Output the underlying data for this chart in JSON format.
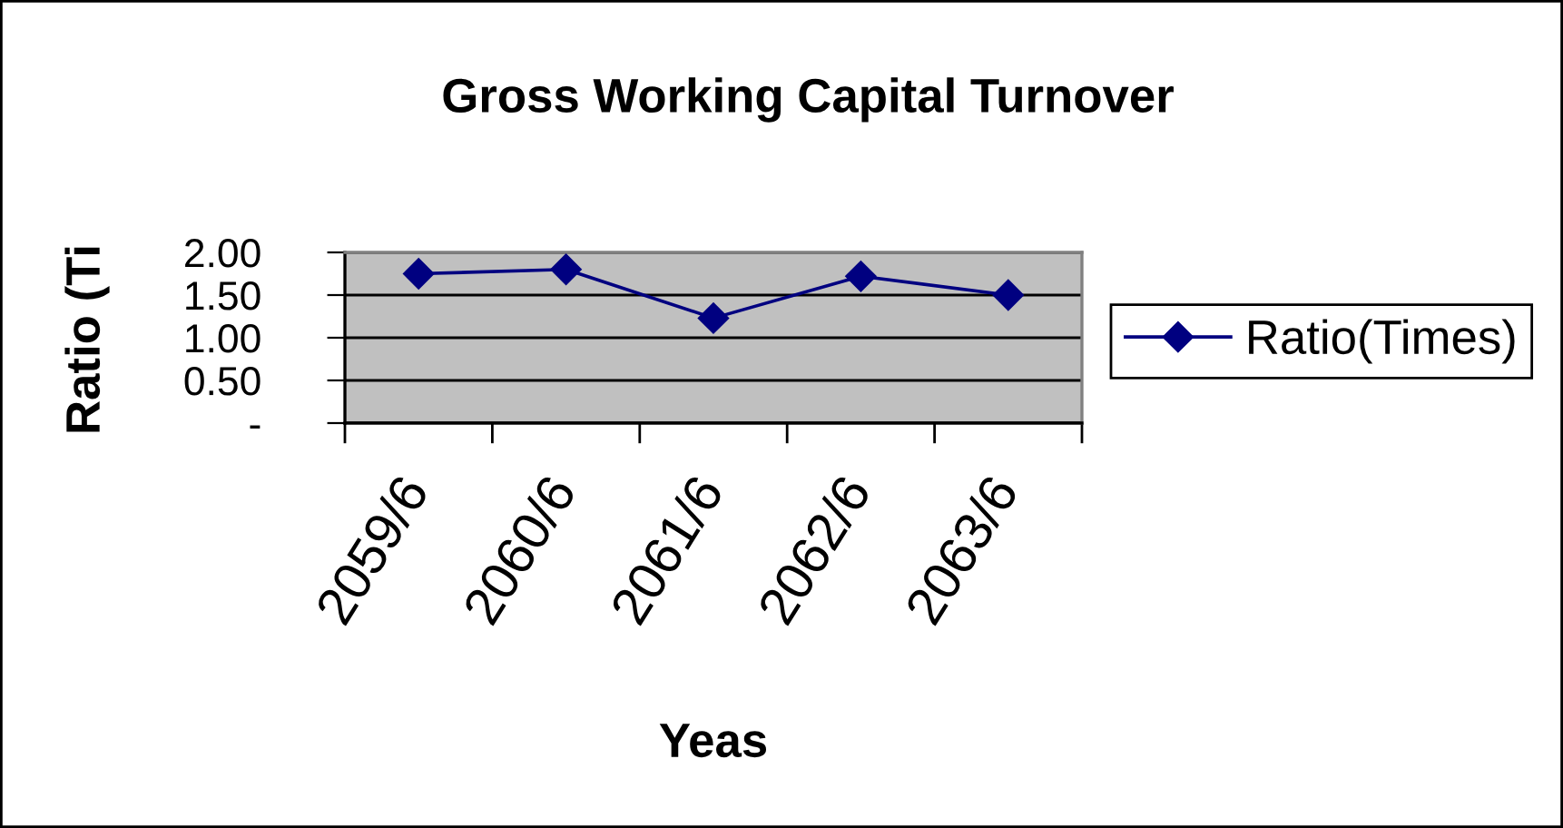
{
  "chart_data": {
    "type": "line",
    "title": "Gross Working Capital Turnover",
    "xlabel": "Yeas",
    "ylabel": "Ratio (Ti",
    "categories": [
      "2059/6",
      "2060/6",
      "2061/6",
      "2062/6",
      "2063/6"
    ],
    "series": [
      {
        "name": "Ratio(Times)",
        "color": "#000080",
        "values": [
          1.75,
          1.8,
          1.23,
          1.72,
          1.5
        ]
      }
    ],
    "ylim": [
      0,
      2
    ],
    "yticks": [
      {
        "value": 0,
        "label": "-"
      },
      {
        "value": 0.5,
        "label": "0.50"
      },
      {
        "value": 1,
        "label": "1.00"
      },
      {
        "value": 1.5,
        "label": "1.50"
      },
      {
        "value": 2,
        "label": "2.00"
      }
    ],
    "grid": "y",
    "legend": "right",
    "marker": "diamond",
    "line_style": "solid"
  }
}
